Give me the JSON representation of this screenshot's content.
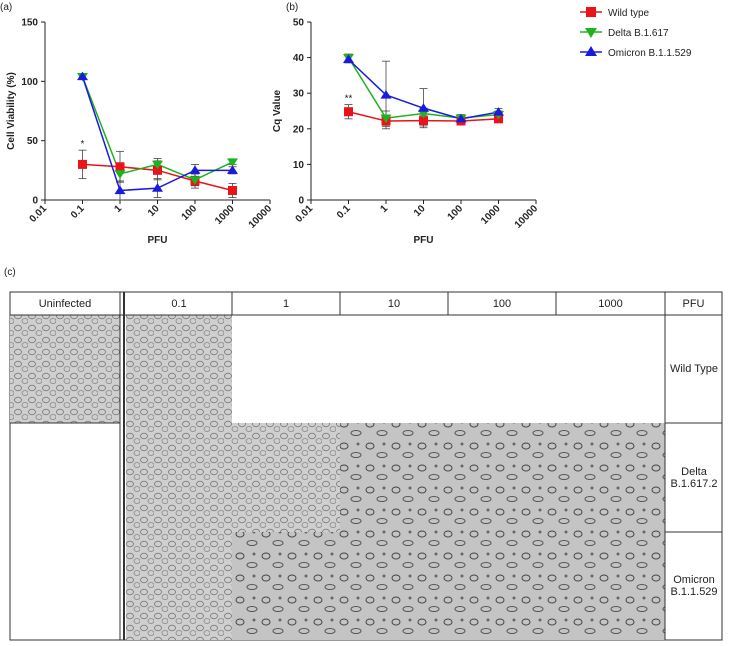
{
  "chart_data": [
    {
      "type": "line",
      "label": "(a)",
      "xlabel": "PFU",
      "ylabel": "Cell Viability (%)",
      "x": [
        0.1,
        1,
        10,
        100,
        1000
      ],
      "xscale": "log",
      "xlim": [
        0.01,
        10000
      ],
      "xticks": [
        0.01,
        0.1,
        1,
        10,
        100,
        1000,
        10000
      ],
      "ylim": [
        0,
        150
      ],
      "yticks": [
        0,
        50,
        100,
        150
      ],
      "series": [
        {
          "name": "Wild type",
          "color": "#e8141a",
          "marker": "square",
          "values": [
            30,
            28,
            25,
            16,
            8
          ],
          "errors": [
            12,
            13,
            8,
            6,
            6
          ]
        },
        {
          "name": "Delta B.1.617",
          "color": "#1fb21f",
          "marker": "triangle-down",
          "values": [
            104,
            22,
            30,
            17,
            32
          ],
          "errors": [
            2,
            6,
            5,
            5,
            2
          ]
        },
        {
          "name": "Omicron B.1.1.529",
          "color": "#1a1adf",
          "marker": "triangle-up",
          "values": [
            104,
            8,
            10,
            25,
            25
          ],
          "errors": [
            2,
            8,
            8,
            5,
            3
          ]
        }
      ],
      "annotations": [
        {
          "text": "*",
          "x": 0.1
        }
      ]
    },
    {
      "type": "line",
      "label": "(b)",
      "xlabel": "PFU",
      "ylabel": "Cq Value",
      "x": [
        0.1,
        1,
        10,
        100,
        1000
      ],
      "xscale": "log",
      "xlim": [
        0.01,
        10000
      ],
      "xticks": [
        0.01,
        0.1,
        1,
        10,
        100,
        1000,
        10000
      ],
      "ylim": [
        0,
        50
      ],
      "yticks": [
        0,
        10,
        20,
        30,
        40,
        50
      ],
      "legend": "right",
      "series": [
        {
          "name": "Wild type",
          "color": "#e8141a",
          "marker": "square",
          "values": [
            24.8,
            22.2,
            22.3,
            22.2,
            22.8
          ],
          "errors": [
            2,
            1.5,
            1.5,
            1,
            1
          ]
        },
        {
          "name": "Delta B.1.617",
          "color": "#1fb21f",
          "marker": "triangle-down",
          "values": [
            40,
            23,
            24.3,
            23,
            24
          ],
          "errors": [
            1,
            2,
            1.5,
            1,
            1
          ]
        },
        {
          "name": "Omicron B.1.1.529",
          "color": "#1a1adf",
          "marker": "triangle-up",
          "values": [
            39.5,
            29.5,
            25.8,
            22.8,
            24.7
          ],
          "errors": [
            1,
            9.5,
            5.5,
            1,
            1
          ]
        }
      ],
      "annotations": [
        {
          "text": "**",
          "x": 0.1
        }
      ]
    }
  ],
  "table": {
    "label": "(c)",
    "columns": [
      "Uninfected",
      "0.1",
      "1",
      "10",
      "100",
      "1000",
      "PFU"
    ],
    "rows": [
      "Wild Type",
      "Delta B.1.617.2",
      "Omicron B.1.1.529"
    ]
  }
}
